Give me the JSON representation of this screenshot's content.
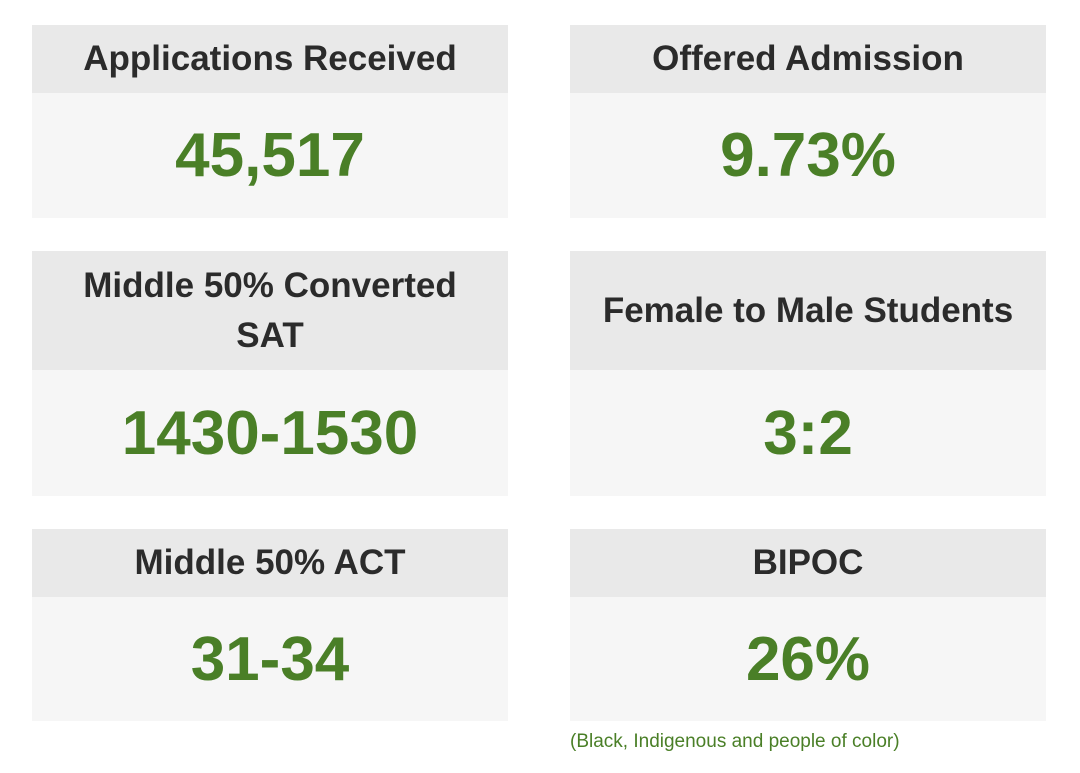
{
  "stats": [
    {
      "label": "Applications Received",
      "value": "45,517"
    },
    {
      "label": "Offered Admission",
      "value": "9.73%"
    },
    {
      "label": "Middle 50% Converted SAT",
      "value": "1430-1530"
    },
    {
      "label": "Female to Male Students",
      "value": "3:2"
    },
    {
      "label": "Middle 50% ACT",
      "value": "31-34"
    },
    {
      "label": "BIPOC",
      "value": "26%"
    }
  ],
  "footnote": "(Black, Indigenous and people of color)",
  "colors": {
    "value_green": "#4a7f27",
    "header_bg": "#e9e9e9",
    "body_bg": "#f6f6f6",
    "label_text": "#2b2b2b"
  }
}
